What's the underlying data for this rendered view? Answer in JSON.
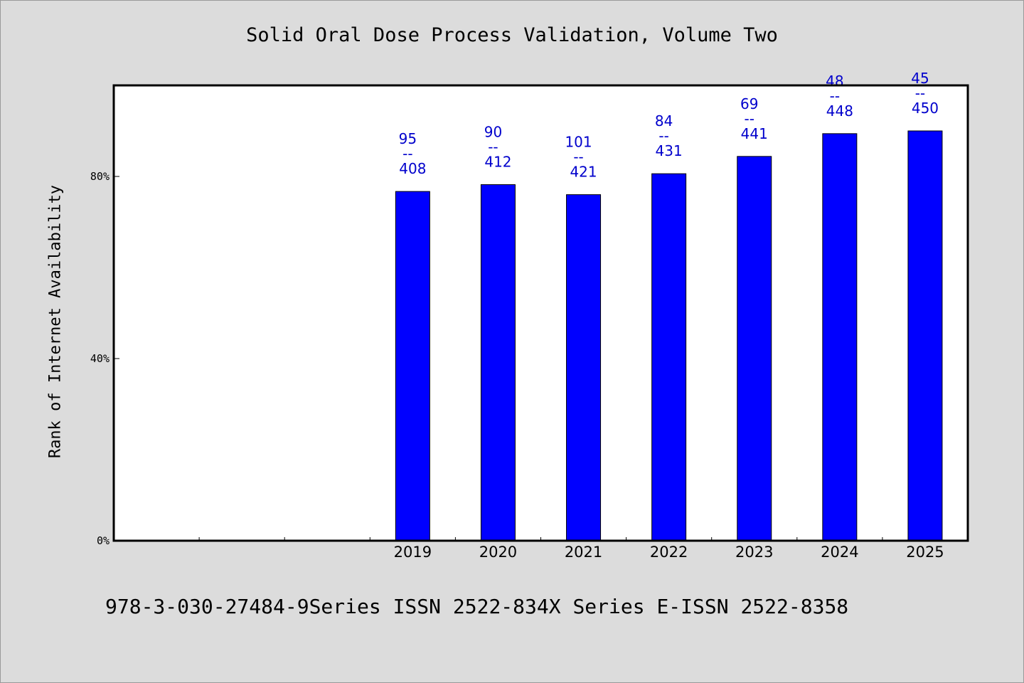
{
  "chart_data": {
    "type": "bar",
    "title": "Solid Oral Dose Process Validation, Volume Two",
    "ylabel": "Rank of Internet Availability",
    "xlabel": "",
    "ylim": [
      0,
      1
    ],
    "yticks": [
      0,
      0.4,
      0.8
    ],
    "ytick_labels": [
      "0%",
      "40%",
      "80%"
    ],
    "categories": [
      "2019",
      "2020",
      "2021",
      "2022",
      "2023",
      "2024",
      "2025"
    ],
    "values": [
      0.767,
      0.782,
      0.76,
      0.806,
      0.844,
      0.894,
      0.9
    ],
    "rank": [
      "95",
      "90",
      "101",
      "84",
      "69",
      "48",
      "45"
    ],
    "total": [
      "408",
      "412",
      "421",
      "431",
      "441",
      "448",
      "450"
    ],
    "label_separator": "--",
    "bar_color": "#0000ff",
    "label_color": "#0000cc",
    "background": "#dcdcdc",
    "grid": false
  },
  "footer": {
    "text": "978-3-030-27484-9Series ISSN 2522-834X Series E-ISSN 2522-8358"
  }
}
